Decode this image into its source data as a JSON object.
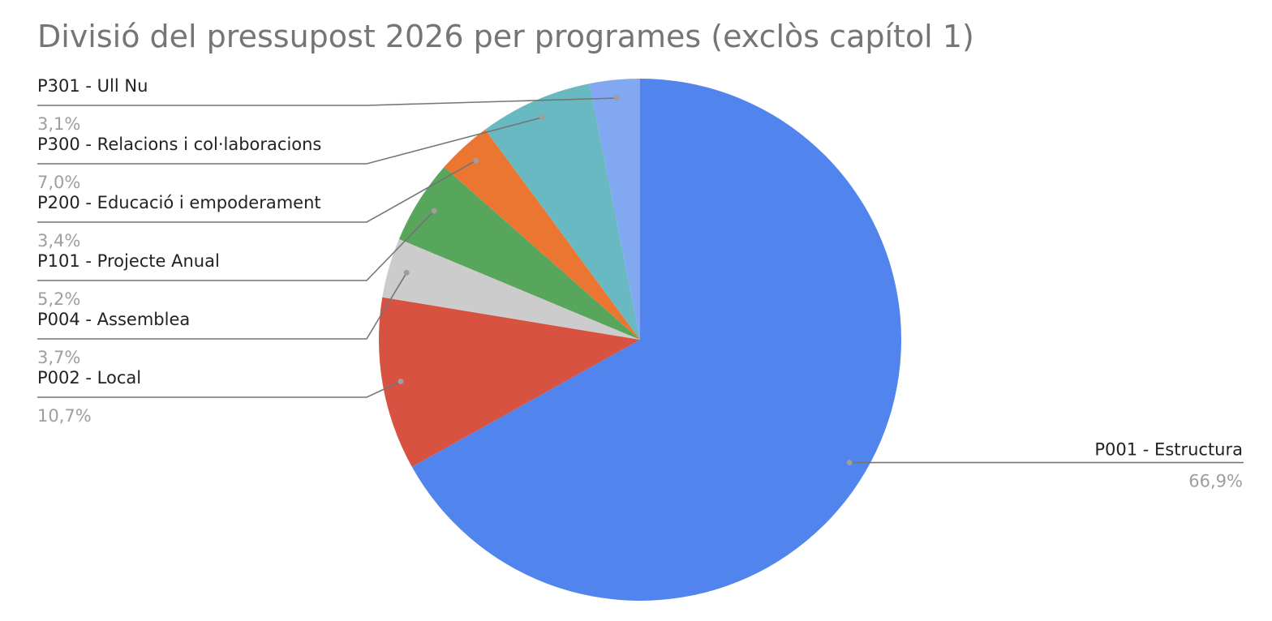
{
  "chart_data": {
    "type": "pie",
    "title": "Divisió del pressupost 2026 per programes (exclòs capítol 1)",
    "slices": [
      {
        "label": "P001 - Estructura",
        "value": 66.9,
        "value_label": "66,9%",
        "color": "#5284ed"
      },
      {
        "label": "P002 - Local",
        "value": 10.7,
        "value_label": "10,7%",
        "color": "#d75241"
      },
      {
        "label": "P004 - Assemblea",
        "value": 3.7,
        "value_label": "3,7%",
        "color": "#cccccc"
      },
      {
        "label": "P101 - Projecte Anual",
        "value": 5.2,
        "value_label": "5,2%",
        "color": "#58a55c"
      },
      {
        "label": "P200 - Educació i empoderament",
        "value": 3.4,
        "value_label": "3,4%",
        "color": "#eb7632"
      },
      {
        "label": "P300 - Relacions i col·laboracions",
        "value": 7.0,
        "value_label": "7,0%",
        "color": "#69b9c2"
      },
      {
        "label": "P301 - Ull Nu",
        "value": 3.1,
        "value_label": "3,1%",
        "color": "#82a8f2"
      }
    ],
    "start": "12 o'clock",
    "direction": "clockwise",
    "legend": "none",
    "labels": "outside with leader lines"
  }
}
